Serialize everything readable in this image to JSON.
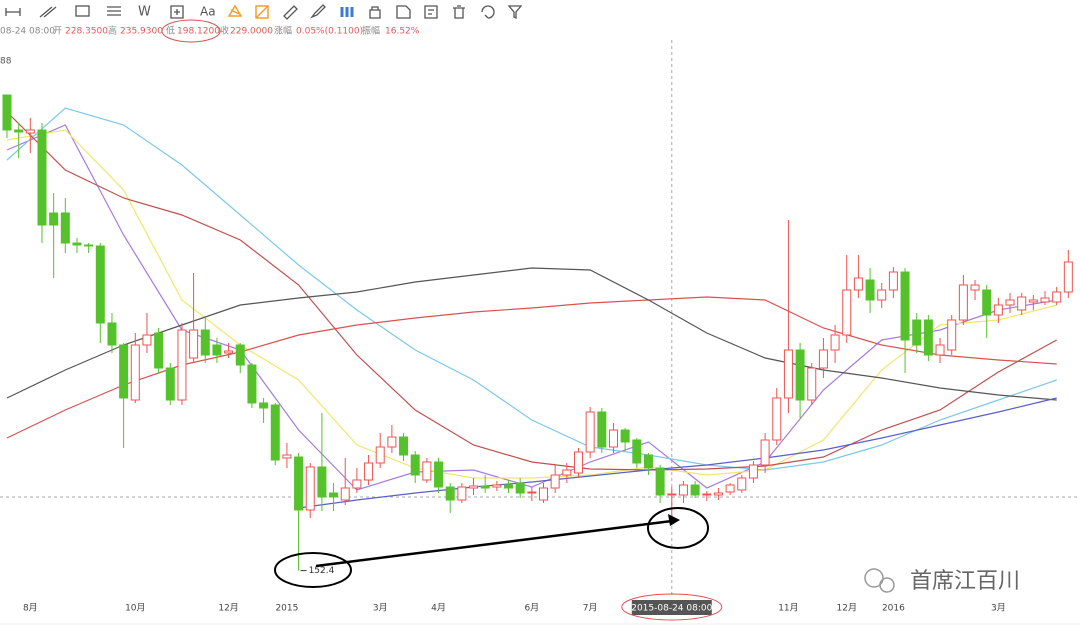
{
  "toolbar": [
    "W",
    "Aa"
  ],
  "watermark": "首席江百川",
  "chart_data": {
    "type": "candlestick",
    "header": {
      "time": "08-24 08:00",
      "open_label": "开",
      "open": "228.3500",
      "high_label": "高",
      "high": "235.9300",
      "low_label": "低",
      "low": "198.1200",
      "close_label": "收",
      "close": "229.0000",
      "change_label": "涨幅",
      "change": "0.05%(0.1100)",
      "amplitude_label": "振幅",
      "amplitude": "16.52%"
    },
    "corner_label": "88",
    "ylim": [
      128,
      673
    ],
    "xlim": [
      -0.6,
      92
    ],
    "up_color": "#ef5350",
    "down_color": "#55c22b",
    "xticks": [
      {
        "value": 2,
        "label": "8月"
      },
      {
        "value": 11,
        "label": "10月"
      },
      {
        "value": 19,
        "label": "12月"
      },
      {
        "value": 24,
        "label": "2015"
      },
      {
        "value": 32,
        "label": "3月"
      },
      {
        "value": 37,
        "label": "4月"
      },
      {
        "value": 45,
        "label": "6月"
      },
      {
        "value": 50,
        "label": "7月"
      },
      {
        "value": 67,
        "label": "11月"
      },
      {
        "value": 72,
        "label": "12月"
      },
      {
        "value": 76,
        "label": "2016"
      },
      {
        "value": 85,
        "label": "3月"
      }
    ],
    "crosshair": {
      "value": 57,
      "label": "2015-08-24 08:00"
    },
    "min_label": {
      "index": 25,
      "value": 152.4
    },
    "open": [
      628,
      593,
      590,
      593,
      510,
      510,
      480,
      478,
      477,
      400,
      378,
      323,
      378,
      390,
      355,
      323,
      365,
      393,
      378,
      370,
      378,
      358,
      320,
      318,
      265,
      266,
      213,
      256,
      230,
      223,
      235,
      243,
      260,
      276,
      286,
      268,
      243,
      261,
      236,
      223,
      235,
      237,
      236,
      238,
      240,
      230,
      223,
      235,
      248,
      250,
      271,
      311,
      276,
      293,
      283,
      268,
      255,
      228.35,
      228,
      238,
      228,
      228,
      231,
      233,
      245,
      258,
      283,
      325,
      373,
      323,
      355,
      373,
      388,
      433,
      443,
      423,
      433,
      451,
      403,
      403,
      368,
      373,
      403,
      433,
      433,
      408,
      418,
      413,
      421,
      421,
      421,
      431
    ],
    "high": [
      628,
      600,
      605,
      600,
      530,
      525,
      485,
      480,
      480,
      410,
      380,
      390,
      410,
      395,
      360,
      400,
      450,
      405,
      385,
      380,
      380,
      360,
      325,
      320,
      280,
      270,
      260,
      310,
      240,
      265,
      255,
      268,
      290,
      298,
      290,
      272,
      265,
      265,
      240,
      240,
      245,
      248,
      242,
      243,
      245,
      236,
      240,
      258,
      260,
      275,
      316,
      315,
      300,
      295,
      285,
      270,
      258,
      235.93,
      242,
      242,
      232,
      235,
      240,
      248,
      262,
      290,
      335,
      503,
      380,
      360,
      385,
      398,
      468,
      468,
      455,
      440,
      456,
      455,
      410,
      408,
      385,
      408,
      448,
      443,
      438,
      425,
      430,
      430,
      428,
      432,
      436,
      473
    ],
    "low": [
      585,
      565,
      570,
      480,
      445,
      470,
      470,
      470,
      380,
      370,
      275,
      320,
      370,
      350,
      318,
      318,
      360,
      360,
      360,
      365,
      350,
      315,
      300,
      258,
      255,
      152.4,
      205,
      212,
      212,
      218,
      230,
      238,
      255,
      270,
      262,
      240,
      240,
      230,
      210,
      220,
      228,
      230,
      232,
      230,
      225,
      222,
      220,
      230,
      240,
      245,
      265,
      270,
      270,
      272,
      255,
      248,
      220,
      198.12,
      220,
      225,
      222,
      223,
      228,
      230,
      240,
      250,
      278,
      310,
      305,
      318,
      345,
      360,
      380,
      425,
      410,
      415,
      425,
      350,
      370,
      362,
      360,
      368,
      398,
      423,
      385,
      400,
      410,
      408,
      413,
      418,
      418,
      425
    ],
    "close": [
      593,
      591,
      593,
      498,
      498,
      480,
      478,
      477,
      400,
      378,
      325,
      378,
      388,
      355,
      323,
      393,
      393,
      368,
      368,
      372,
      358,
      320,
      315,
      263,
      268,
      213,
      256,
      226,
      226,
      235,
      243,
      260,
      276,
      286,
      268,
      248,
      261,
      236,
      223,
      236,
      237,
      235,
      238,
      235,
      230,
      231,
      235,
      248,
      253,
      271,
      311,
      276,
      293,
      281,
      260,
      255,
      228,
      229,
      238,
      228,
      229,
      230,
      238,
      245,
      258,
      283,
      325,
      373,
      323,
      355,
      373,
      388,
      433,
      445,
      423,
      433,
      451,
      383,
      378,
      368,
      378,
      403,
      438,
      438,
      408,
      418,
      423,
      426,
      423,
      425,
      431,
      461
    ],
    "line_x": [
      0,
      5,
      10,
      15,
      20,
      25,
      30,
      35,
      40,
      45,
      50,
      55,
      60,
      65,
      70,
      75,
      80,
      85,
      90
    ],
    "lines": [
      {
        "color": "#a779e0",
        "values": [
          573,
          598,
          488,
          393,
          373,
          293,
          233,
          251,
          253,
          236,
          261,
          281,
          235,
          261,
          333,
          383,
          393,
          413,
          423
        ]
      },
      {
        "color": "#f2e66b",
        "values": [
          583,
          593,
          533,
          423,
          378,
          343,
          278,
          255,
          245,
          245,
          248,
          256,
          248,
          253,
          283,
          353,
          398,
          403,
          418
        ]
      },
      {
        "color": "#7cc8ec",
        "values": [
          563,
          615,
          598,
          558,
          508,
          458,
          413,
          373,
          343,
          303,
          276,
          268,
          258,
          253,
          261,
          278,
          303,
          323,
          343
        ]
      },
      {
        "color": "#c0504d",
        "values": [
          611,
          553,
          525,
          508,
          483,
          438,
          368,
          313,
          278,
          261,
          254,
          253,
          254,
          257,
          266,
          293,
          313,
          351,
          383
        ]
      },
      {
        "color": "#d9534f",
        "values": [
          285,
          313,
          338,
          358,
          371,
          388,
          398,
          405,
          411,
          415,
          420,
          423,
          426,
          423,
          395,
          378,
          368,
          363,
          359
        ]
      },
      {
        "color": "#555555",
        "values": [
          325,
          353,
          378,
          398,
          418,
          425,
          431,
          441,
          448,
          455,
          453,
          423,
          390,
          365,
          353,
          345,
          335,
          328,
          323
        ]
      },
      {
        "color": "#5a5fc8",
        "values": [
          null,
          null,
          null,
          null,
          null,
          215,
          223,
          230,
          236,
          241,
          247,
          253,
          258,
          265,
          273,
          285,
          298,
          311,
          325
        ]
      }
    ]
  }
}
